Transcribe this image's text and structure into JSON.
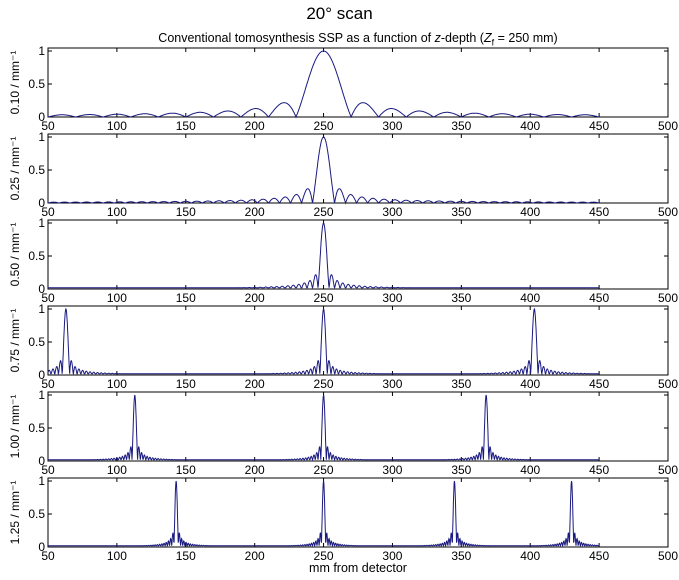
{
  "chart_data": {
    "type": "line",
    "title": "20° scan",
    "subtitle_parts": [
      "Conventional tomosynthesis SSP as a function of ",
      "z",
      "-depth (",
      "Z",
      "f",
      " = 250 mm)"
    ],
    "xlabel": "mm from detector",
    "xlim": [
      50,
      500
    ],
    "ylim": [
      0,
      1
    ],
    "xticks": [
      50,
      100,
      150,
      200,
      250,
      300,
      350,
      400,
      450,
      500
    ],
    "yticks": [
      0,
      0.5,
      1
    ],
    "ytick_labels": [
      "0",
      "0.5",
      "1"
    ],
    "line_color": "#1a1a80",
    "data_x_range": [
      50,
      450
    ],
    "panels": [
      {
        "ylabel": "0.10 / mm⁻¹",
        "peaks": [
          250
        ],
        "main_lobe_halfwidth": 20
      },
      {
        "ylabel": "0.25 / mm⁻¹",
        "peaks": [
          250
        ],
        "main_lobe_halfwidth": 8
      },
      {
        "ylabel": "0.50 / mm⁻¹",
        "peaks": [
          250
        ],
        "main_lobe_halfwidth": 4
      },
      {
        "ylabel": "0.75 / mm⁻¹",
        "peaks": [
          63,
          250,
          403
        ],
        "main_lobe_halfwidth": 2.7
      },
      {
        "ylabel": "1.00 / mm⁻¹",
        "peaks": [
          113,
          250,
          368
        ],
        "main_lobe_halfwidth": 2
      },
      {
        "ylabel": "1.25 / mm⁻¹",
        "peaks": [
          143,
          250,
          345,
          430
        ],
        "main_lobe_halfwidth": 1.6
      }
    ]
  }
}
